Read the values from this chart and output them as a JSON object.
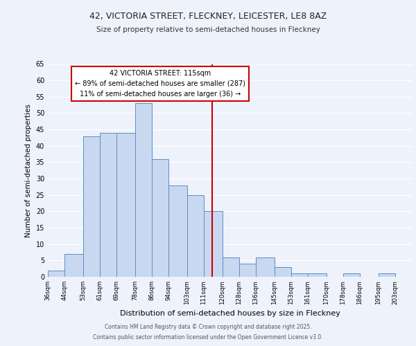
{
  "title1": "42, VICTORIA STREET, FLECKNEY, LEICESTER, LE8 8AZ",
  "title2": "Size of property relative to semi-detached houses in Fleckney",
  "xlabel": "Distribution of semi-detached houses by size in Fleckney",
  "ylabel": "Number of semi-detached properties",
  "bin_labels": [
    "36sqm",
    "44sqm",
    "53sqm",
    "61sqm",
    "69sqm",
    "78sqm",
    "86sqm",
    "94sqm",
    "103sqm",
    "111sqm",
    "120sqm",
    "128sqm",
    "136sqm",
    "145sqm",
    "153sqm",
    "161sqm",
    "170sqm",
    "178sqm",
    "186sqm",
    "195sqm",
    "203sqm"
  ],
  "bin_edges": [
    36,
    44,
    53,
    61,
    69,
    78,
    86,
    94,
    103,
    111,
    120,
    128,
    136,
    145,
    153,
    161,
    170,
    178,
    186,
    195,
    203,
    211
  ],
  "bar_heights": [
    2,
    7,
    43,
    44,
    44,
    53,
    36,
    28,
    25,
    20,
    6,
    4,
    6,
    3,
    1,
    1,
    0,
    1,
    0,
    1,
    0
  ],
  "bar_color": "#c8d8f0",
  "bar_edge_color": "#5b8ec4",
  "vline_x": 115,
  "vline_color": "#cc0000",
  "annotation_title": "42 VICTORIA STREET: 115sqm",
  "annotation_line1": "← 89% of semi-detached houses are smaller (287)",
  "annotation_line2": "11% of semi-detached houses are larger (36) →",
  "annotation_box_color": "#ffffff",
  "annotation_box_edge": "#cc0000",
  "ylim": [
    0,
    65
  ],
  "yticks": [
    0,
    5,
    10,
    15,
    20,
    25,
    30,
    35,
    40,
    45,
    50,
    55,
    60,
    65
  ],
  "background_color": "#eef2fb",
  "footer1": "Contains HM Land Registry data © Crown copyright and database right 2025.",
  "footer2": "Contains public sector information licensed under the Open Government Licence v3.0."
}
